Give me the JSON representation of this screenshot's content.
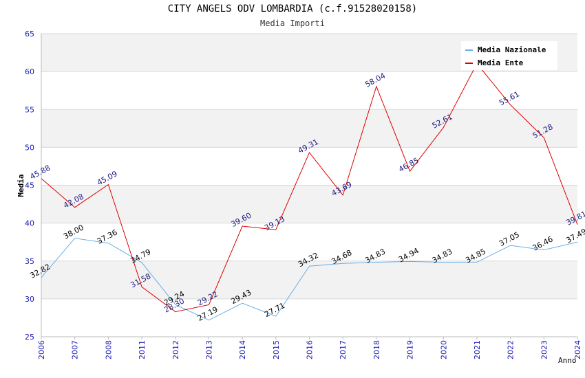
{
  "chart_data": {
    "type": "line",
    "title": "CITY ANGELS ODV LOMBARDIA (c.f.91528020158)",
    "subtitle": "Media Importi",
    "ylabel": "Media",
    "xlabel": "Anno",
    "ylim": [
      25,
      65
    ],
    "yticks": [
      25,
      30,
      35,
      40,
      45,
      50,
      55,
      60,
      65
    ],
    "categories": [
      "2006",
      "2007",
      "2008",
      "2011",
      "2012",
      "2013",
      "2014",
      "2015",
      "2016",
      "2017",
      "2018",
      "2019",
      "2020",
      "2021",
      "2022",
      "2023",
      "2024"
    ],
    "legend_position": "top-right",
    "grid": true,
    "series": [
      {
        "name": "Media Nazionale",
        "color": "#6aaee6",
        "values": [
          32.82,
          38.0,
          37.36,
          34.79,
          29.24,
          27.19,
          29.43,
          27.71,
          34.32,
          34.68,
          34.83,
          34.94,
          34.83,
          34.85,
          37.05,
          36.46,
          37.49
        ],
        "labels": [
          "32.82",
          "38.00",
          "37.36",
          "34.79",
          "29.24",
          "27.19",
          "29.43",
          "27.71",
          "34.32",
          "34.68",
          "34.83",
          "34.94",
          "34.83",
          "34.85",
          "37.05",
          "36.46",
          "37.49"
        ]
      },
      {
        "name": "Media Ente",
        "color": "#dd0000",
        "values": [
          45.88,
          42.08,
          45.09,
          31.58,
          28.3,
          29.22,
          39.6,
          39.13,
          49.31,
          43.69,
          58.04,
          46.85,
          52.61,
          61.05,
          55.61,
          51.28,
          39.81
        ],
        "labels": [
          "45.88",
          "42.08",
          "45.09",
          "31.58",
          "28.30",
          "29.22",
          "39.60",
          "39.13",
          "49.31",
          "43.69",
          "58.04",
          "46.85",
          "52.61",
          "",
          "55.61",
          "51.28",
          "39.81"
        ]
      }
    ]
  }
}
